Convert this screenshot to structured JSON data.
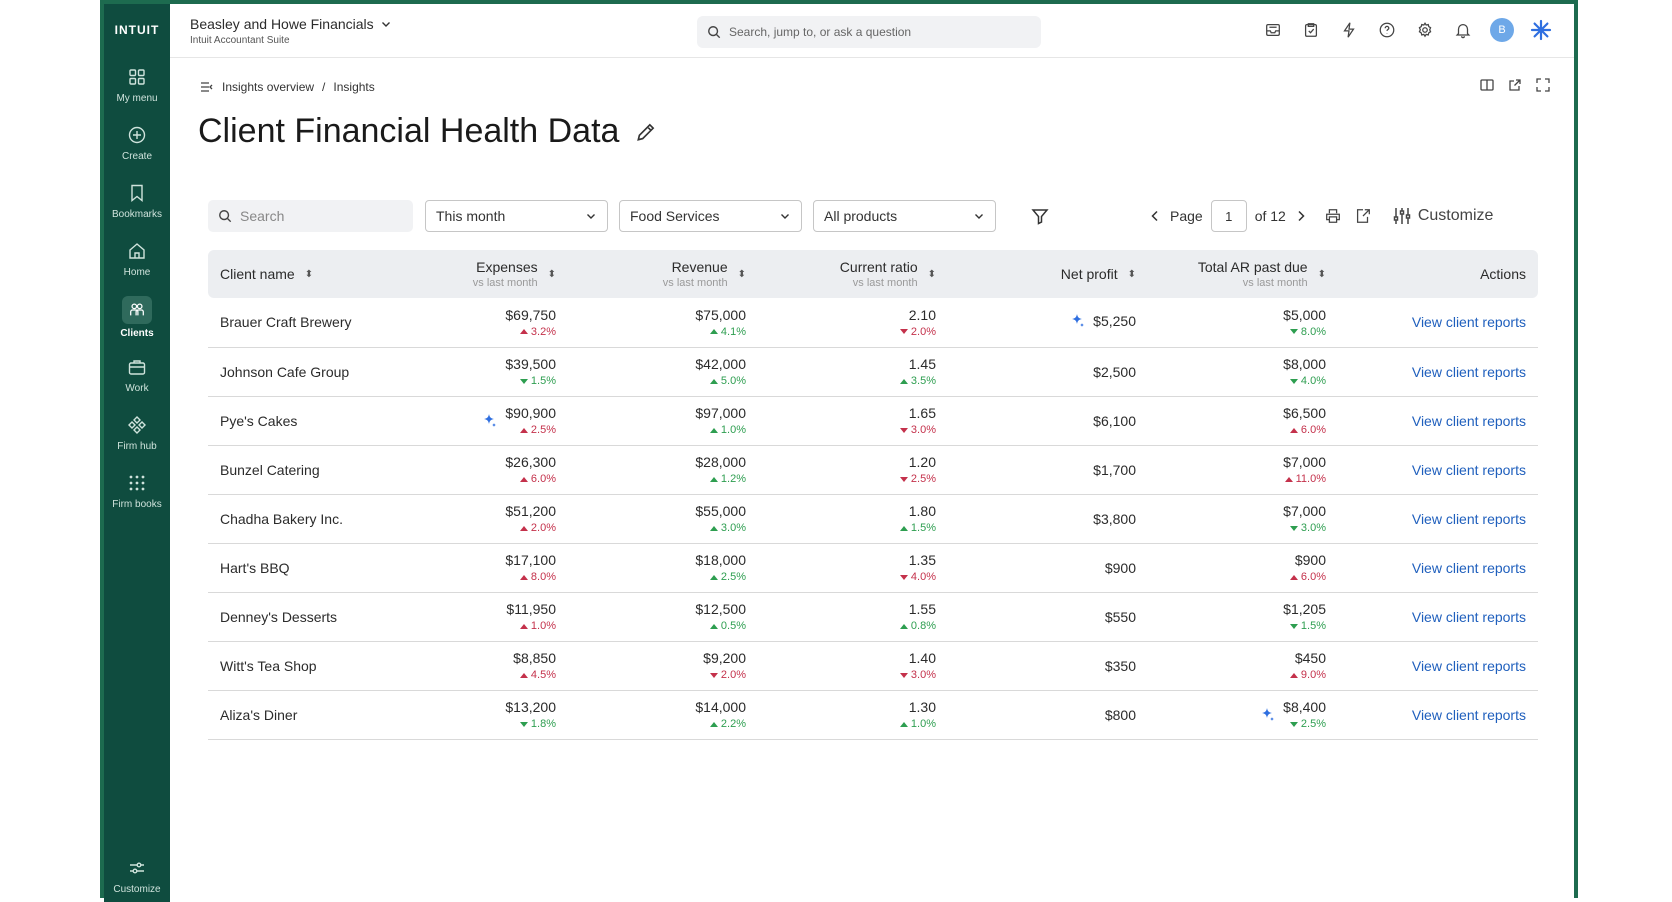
{
  "brand": "INTUIT",
  "sidebar": {
    "items": [
      {
        "label": "My menu",
        "icon": "grid-icon"
      },
      {
        "label": "Create",
        "icon": "plus-circle-icon"
      },
      {
        "label": "Bookmarks",
        "icon": "bookmark-icon"
      },
      {
        "label": "Home",
        "icon": "home-icon"
      },
      {
        "label": "Clients",
        "icon": "clients-icon",
        "active": true
      },
      {
        "label": "Work",
        "icon": "briefcase-icon"
      },
      {
        "label": "Firm hub",
        "icon": "firm-hub-icon"
      },
      {
        "label": "Firm books",
        "icon": "dots-grid-icon"
      }
    ],
    "bottom_label": "Customize"
  },
  "header": {
    "company_name": "Beasley and Howe Financials",
    "company_sub": "Intuit Accountant Suite",
    "search_placeholder": "Search, jump to, or ask a question",
    "avatar_initial": "B"
  },
  "breadcrumb": {
    "parent": "Insights overview",
    "separator": "/",
    "current": "Insights"
  },
  "page": {
    "title": "Client Financial Health Data"
  },
  "toolbar": {
    "search_placeholder": "Search",
    "period": "This month",
    "industry": "Food Services",
    "products": "All products",
    "page_label": "Page",
    "page_value": "1",
    "page_of": "of 12",
    "customize_label": "Customize"
  },
  "table": {
    "columns": [
      {
        "label": "Client name",
        "sub": ""
      },
      {
        "label": "Expenses",
        "sub": "vs last month"
      },
      {
        "label": "Revenue",
        "sub": "vs last month"
      },
      {
        "label": "Current ratio",
        "sub": "vs last month"
      },
      {
        "label": "Net profit",
        "sub": ""
      },
      {
        "label": "Total AR past due",
        "sub": "vs last month"
      },
      {
        "label": "Actions",
        "sub": ""
      }
    ],
    "action_label": "View client reports",
    "rows": [
      {
        "client": "Brauer Craft Brewery",
        "expenses": "$69,750",
        "exp_delta": "3.2%",
        "exp_dir": "up",
        "exp_color": "red",
        "revenue": "$75,000",
        "rev_delta": "4.1%",
        "rev_dir": "up",
        "rev_color": "green",
        "ratio": "2.10",
        "ratio_delta": "2.0%",
        "ratio_dir": "down",
        "ratio_color": "red",
        "net_profit": "$5,250",
        "np_spark": true,
        "ar": "$5,000",
        "ar_delta": "8.0%",
        "ar_dir": "down",
        "ar_color": "green",
        "ar_spark": false,
        "exp_spark": false
      },
      {
        "client": "Johnson Cafe Group",
        "expenses": "$39,500",
        "exp_delta": "1.5%",
        "exp_dir": "down",
        "exp_color": "green",
        "revenue": "$42,000",
        "rev_delta": "5.0%",
        "rev_dir": "up",
        "rev_color": "green",
        "ratio": "1.45",
        "ratio_delta": "3.5%",
        "ratio_dir": "up",
        "ratio_color": "green",
        "net_profit": "$2,500",
        "np_spark": false,
        "ar": "$8,000",
        "ar_delta": "4.0%",
        "ar_dir": "down",
        "ar_color": "green",
        "ar_spark": false,
        "exp_spark": false
      },
      {
        "client": "Pye's Cakes",
        "expenses": "$90,900",
        "exp_delta": "2.5%",
        "exp_dir": "up",
        "exp_color": "red",
        "revenue": "$97,000",
        "rev_delta": "1.0%",
        "rev_dir": "up",
        "rev_color": "green",
        "ratio": "1.65",
        "ratio_delta": "3.0%",
        "ratio_dir": "down",
        "ratio_color": "red",
        "net_profit": "$6,100",
        "np_spark": false,
        "ar": "$6,500",
        "ar_delta": "6.0%",
        "ar_dir": "up",
        "ar_color": "red",
        "ar_spark": false,
        "exp_spark": true
      },
      {
        "client": "Bunzel Catering",
        "expenses": "$26,300",
        "exp_delta": "6.0%",
        "exp_dir": "up",
        "exp_color": "red",
        "revenue": "$28,000",
        "rev_delta": "1.2%",
        "rev_dir": "up",
        "rev_color": "green",
        "ratio": "1.20",
        "ratio_delta": "2.5%",
        "ratio_dir": "down",
        "ratio_color": "red",
        "net_profit": "$1,700",
        "np_spark": false,
        "ar": "$7,000",
        "ar_delta": "11.0%",
        "ar_dir": "up",
        "ar_color": "red",
        "ar_spark": false,
        "exp_spark": false
      },
      {
        "client": "Chadha Bakery Inc.",
        "expenses": "$51,200",
        "exp_delta": "2.0%",
        "exp_dir": "up",
        "exp_color": "red",
        "revenue": "$55,000",
        "rev_delta": "3.0%",
        "rev_dir": "up",
        "rev_color": "green",
        "ratio": "1.80",
        "ratio_delta": "1.5%",
        "ratio_dir": "up",
        "ratio_color": "green",
        "net_profit": "$3,800",
        "np_spark": false,
        "ar": "$7,000",
        "ar_delta": "3.0%",
        "ar_dir": "down",
        "ar_color": "green",
        "ar_spark": false,
        "exp_spark": false
      },
      {
        "client": "Hart's BBQ",
        "expenses": "$17,100",
        "exp_delta": "8.0%",
        "exp_dir": "up",
        "exp_color": "red",
        "revenue": "$18,000",
        "rev_delta": "2.5%",
        "rev_dir": "up",
        "rev_color": "green",
        "ratio": "1.35",
        "ratio_delta": "4.0%",
        "ratio_dir": "down",
        "ratio_color": "red",
        "net_profit": "$900",
        "np_spark": false,
        "ar": "$900",
        "ar_delta": "6.0%",
        "ar_dir": "up",
        "ar_color": "red",
        "ar_spark": false,
        "exp_spark": false
      },
      {
        "client": "Denney's Desserts",
        "expenses": "$11,950",
        "exp_delta": "1.0%",
        "exp_dir": "up",
        "exp_color": "red",
        "revenue": "$12,500",
        "rev_delta": "0.5%",
        "rev_dir": "up",
        "rev_color": "green",
        "ratio": "1.55",
        "ratio_delta": "0.8%",
        "ratio_dir": "up",
        "ratio_color": "green",
        "net_profit": "$550",
        "np_spark": false,
        "ar": "$1,205",
        "ar_delta": "1.5%",
        "ar_dir": "down",
        "ar_color": "green",
        "ar_spark": false,
        "exp_spark": false
      },
      {
        "client": "Witt's Tea Shop",
        "expenses": "$8,850",
        "exp_delta": "4.5%",
        "exp_dir": "up",
        "exp_color": "red",
        "revenue": "$9,200",
        "rev_delta": "2.0%",
        "rev_dir": "down",
        "rev_color": "red",
        "ratio": "1.40",
        "ratio_delta": "3.0%",
        "ratio_dir": "down",
        "ratio_color": "red",
        "net_profit": "$350",
        "np_spark": false,
        "ar": "$450",
        "ar_delta": "9.0%",
        "ar_dir": "up",
        "ar_color": "red",
        "ar_spark": false,
        "exp_spark": false
      },
      {
        "client": "Aliza's Diner",
        "expenses": "$13,200",
        "exp_delta": "1.8%",
        "exp_dir": "down",
        "exp_color": "green",
        "revenue": "$14,000",
        "rev_delta": "2.2%",
        "rev_dir": "up",
        "rev_color": "green",
        "ratio": "1.30",
        "ratio_delta": "1.0%",
        "ratio_dir": "up",
        "ratio_color": "green",
        "net_profit": "$800",
        "np_spark": false,
        "ar": "$8,400",
        "ar_delta": "2.5%",
        "ar_dir": "down",
        "ar_color": "green",
        "ar_spark": true,
        "exp_spark": false
      }
    ]
  },
  "colors": {
    "sidebar": "#0f4c3f",
    "accent": "#1f5fbd",
    "red": "#c4314b",
    "green": "#2e9e50",
    "sparkle": "#2f6fe0"
  }
}
